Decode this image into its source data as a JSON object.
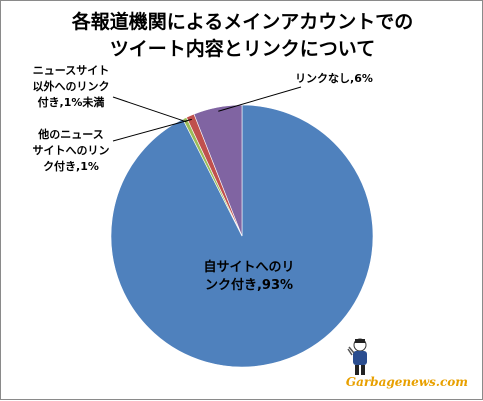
{
  "chart_data": {
    "type": "pie",
    "title_lines": [
      "各報道機関によるメインアカウントでの",
      "ツイート内容とリンクについて"
    ],
    "slices": [
      {
        "label_lines": [
          "自サイトへのリ",
          "ンク付き,93%"
        ],
        "value": 93,
        "color": "#4f81bd"
      },
      {
        "label_lines": [
          "ニュースサイト",
          "以外へのリンク",
          "付き,1%未満"
        ],
        "value": 0.5,
        "color": "#9bbb59"
      },
      {
        "label_lines": [
          "他のニュース",
          "サイトへのリン",
          "ク付き,1%"
        ],
        "value": 1,
        "color": "#c0504d"
      },
      {
        "label_lines": [
          "リンクなし,6%"
        ],
        "value": 6,
        "color": "#8064a2"
      }
    ]
  },
  "watermark": "Garbagenews.com"
}
